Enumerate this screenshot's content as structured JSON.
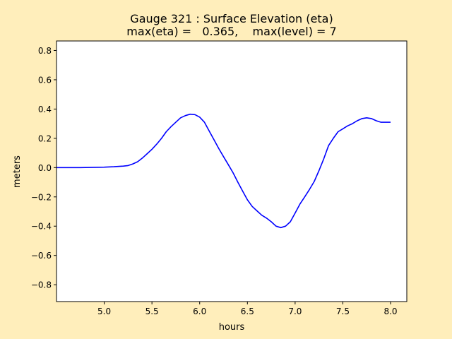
{
  "figure": {
    "background": "#FFEEBB",
    "axes_background": "#FFFFFF"
  },
  "chart_data": {
    "type": "line",
    "title_line1": "Gauge 321 : Surface Elevation (eta)",
    "title_line2": "max(eta) =   0.365,    max(level) = 7",
    "xlabel": "hours",
    "ylabel": "meters",
    "xlim": [
      4.5,
      8.17
    ],
    "ylim": [
      -0.915,
      0.865
    ],
    "xticks": [
      5.0,
      5.5,
      6.0,
      6.5,
      7.0,
      7.5,
      8.0
    ],
    "xtick_labels": [
      "5.0",
      "5.5",
      "6.0",
      "6.5",
      "7.0",
      "7.5",
      "8.0"
    ],
    "yticks": [
      -0.8,
      -0.6,
      -0.4,
      -0.2,
      0.0,
      0.2,
      0.4,
      0.6,
      0.8
    ],
    "ytick_labels": [
      "−0.8",
      "−0.6",
      "−0.4",
      "−0.2",
      "0.0",
      "0.2",
      "0.4",
      "0.6",
      "0.8"
    ],
    "grid": false,
    "series": [
      {
        "color": "#0000FF",
        "x": [
          4.5,
          4.75,
          5.0,
          5.1,
          5.2,
          5.25,
          5.3,
          5.35,
          5.4,
          5.45,
          5.5,
          5.55,
          5.6,
          5.65,
          5.7,
          5.75,
          5.8,
          5.85,
          5.9,
          5.95,
          6.0,
          6.05,
          6.1,
          6.15,
          6.2,
          6.25,
          6.3,
          6.35,
          6.4,
          6.45,
          6.5,
          6.55,
          6.6,
          6.65,
          6.7,
          6.75,
          6.8,
          6.85,
          6.9,
          6.95,
          7.0,
          7.05,
          7.1,
          7.15,
          7.2,
          7.25,
          7.3,
          7.35,
          7.4,
          7.45,
          7.5,
          7.55,
          7.6,
          7.65,
          7.7,
          7.75,
          7.8,
          7.85,
          7.9,
          7.95,
          8.0
        ],
        "y": [
          0.0,
          0.0,
          0.003,
          0.006,
          0.01,
          0.014,
          0.025,
          0.04,
          0.065,
          0.095,
          0.125,
          0.16,
          0.2,
          0.245,
          0.28,
          0.31,
          0.34,
          0.355,
          0.365,
          0.362,
          0.345,
          0.31,
          0.25,
          0.19,
          0.13,
          0.075,
          0.02,
          -0.035,
          -0.1,
          -0.16,
          -0.22,
          -0.265,
          -0.295,
          -0.325,
          -0.345,
          -0.37,
          -0.4,
          -0.41,
          -0.4,
          -0.37,
          -0.31,
          -0.25,
          -0.2,
          -0.15,
          -0.095,
          -0.02,
          0.06,
          0.15,
          0.2,
          0.245,
          0.265,
          0.285,
          0.3,
          0.32,
          0.335,
          0.34,
          0.335,
          0.32,
          0.31,
          0.31,
          0.31
        ]
      }
    ]
  }
}
